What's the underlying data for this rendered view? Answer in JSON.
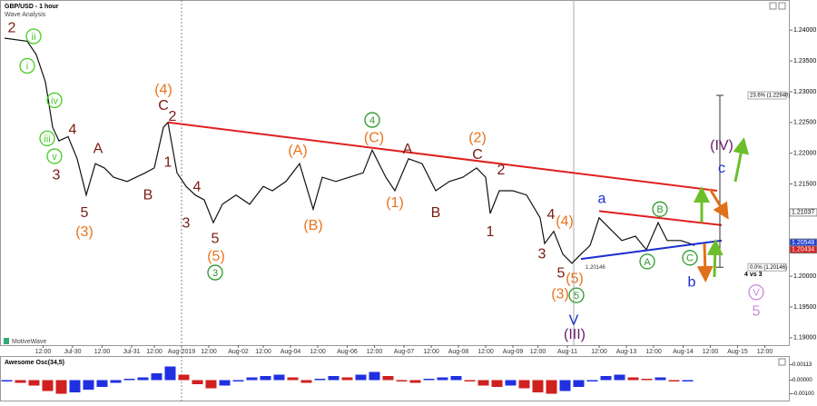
{
  "chart_data": [
    {
      "type": "line",
      "title": "GBP/USD - 1 hour",
      "subtitle": "Wave Analysis",
      "source": "MotiveWave",
      "note": "4 vs 3",
      "color": "#111111",
      "x": [
        2,
        12,
        16,
        20,
        23.2,
        26,
        30,
        34,
        38,
        42,
        46,
        50,
        56,
        60,
        64,
        68,
        72,
        74,
        78,
        82,
        86,
        90,
        94,
        98,
        104,
        110,
        116,
        120,
        126,
        132,
        138,
        142,
        148,
        154,
        160,
        164,
        170,
        174,
        180,
        186,
        192,
        198,
        204,
        210,
        214,
        216,
        220,
        226,
        232,
        238,
        240,
        244,
        248,
        252,
        256,
        260,
        264,
        268,
        274,
        280,
        284.8,
        290,
        294,
        300,
        304,
        306
      ],
      "values": [
        1.2387,
        1.2382,
        1.236,
        1.2316,
        1.2242,
        1.222,
        1.2227,
        1.2191,
        1.2132,
        1.2183,
        1.2176,
        1.2161,
        1.2154,
        1.2161,
        1.2168,
        1.2176,
        1.2242,
        1.225,
        1.2168,
        1.2146,
        1.2132,
        1.2124,
        1.2087,
        1.2117,
        1.2132,
        1.2117,
        1.2146,
        1.2139,
        1.2154,
        1.2183,
        1.2109,
        1.2161,
        1.2154,
        1.2161,
        1.2168,
        1.2205,
        1.2161,
        1.2139,
        1.2191,
        1.2183,
        1.2139,
        1.2154,
        1.2161,
        1.2176,
        1.2161,
        1.2102,
        1.2139,
        1.2139,
        1.2132,
        1.2095,
        1.2053,
        1.2073,
        1.2036,
        1.2021,
        1.2036,
        1.205,
        1.2095,
        1.208,
        1.2058,
        1.2065,
        1.2043,
        1.2087,
        1.2058,
        1.2058,
        1.2053,
        1.205
      ],
      "xlim": [
        0,
        348
      ],
      "ylim": [
        1.1888,
        1.2449
      ],
      "xticks": [
        {
          "value": 19,
          "label": "12:00"
        },
        {
          "value": 32,
          "label": "Jul-30"
        },
        {
          "value": 45,
          "label": "12:00"
        },
        {
          "value": 58,
          "label": "Jul-31"
        },
        {
          "value": 68,
          "label": "12:00"
        },
        {
          "value": 80,
          "label": "Aug-2019"
        },
        {
          "value": 92,
          "label": "12:00"
        },
        {
          "value": 105,
          "label": "Aug-02"
        },
        {
          "value": 116,
          "label": "12:00"
        },
        {
          "value": 128,
          "label": "Aug-04"
        },
        {
          "value": 140,
          "label": "12:00"
        },
        {
          "value": 153,
          "label": "Aug-06"
        },
        {
          "value": 165,
          "label": "12:00"
        },
        {
          "value": 178,
          "label": "Aug-07"
        },
        {
          "value": 190,
          "label": "12:00"
        },
        {
          "value": 202,
          "label": "Aug-08"
        },
        {
          "value": 214,
          "label": "12:00"
        },
        {
          "value": 226,
          "label": "Aug-09"
        },
        {
          "value": 237,
          "label": "12:00"
        },
        {
          "value": 250,
          "label": "Aug-11"
        },
        {
          "value": 264,
          "label": "12:00"
        },
        {
          "value": 276,
          "label": "Aug-13"
        },
        {
          "value": 288,
          "label": "12:00"
        },
        {
          "value": 301,
          "label": "Aug-14"
        },
        {
          "value": 313,
          "label": "12:00"
        },
        {
          "value": 325,
          "label": "Aug-15"
        },
        {
          "value": 337,
          "label": "12:00"
        }
      ],
      "yticks": [
        {
          "value": 1.24,
          "label": "1.24000"
        },
        {
          "value": 1.235,
          "label": "1.23500"
        },
        {
          "value": 1.23,
          "label": "1.23000"
        },
        {
          "value": 1.225,
          "label": "1.22500"
        },
        {
          "value": 1.22,
          "label": "1.22000"
        },
        {
          "value": 1.215,
          "label": "1.21500"
        },
        {
          "value": 1.21,
          "label": "1.21000"
        },
        {
          "value": 1.205,
          "label": "1.20500"
        },
        {
          "value": 1.2,
          "label": "1.20000"
        },
        {
          "value": 1.195,
          "label": "1.19500"
        },
        {
          "value": 1.19,
          "label": "1.19000"
        }
      ],
      "price_tags": [
        {
          "value": 1.21037,
          "label": "1.21037",
          "color": "#ffffff",
          "text_color": "#000000"
        },
        {
          "value": 1.20548,
          "label": "1.20548",
          "color": "#2040d0",
          "text_color": "#ffffff"
        },
        {
          "value": 1.20434,
          "label": "1.20434",
          "color": "#d02020",
          "text_color": "#ffffff"
        }
      ],
      "fib": [
        {
          "value": 1.2294,
          "label": "23.6% (1.22940)"
        },
        {
          "value": 1.20146,
          "label": "0.0% (1.20146)"
        }
      ],
      "low_label": {
        "x": 258,
        "value": 1.20146,
        "label": "1.20146"
      },
      "lines": [
        {
          "x": [
            74,
            316
          ],
          "y": [
            1.225,
            1.2139
          ],
          "color": "#e02020"
        },
        {
          "x": [
            264,
            318
          ],
          "y": [
            1.2106,
            1.2083
          ],
          "color": "#e02020"
        },
        {
          "x": [
            256,
            318
          ],
          "y": [
            1.2028,
            1.2058
          ],
          "color": "#1a2dcc"
        }
      ],
      "annotations": [
        {
          "text": "2",
          "color": "#7a1b12",
          "x": 5.2,
          "y": 1.2404
        },
        {
          "text": "ii",
          "color": "#44cc22",
          "x": 14.8,
          "y": 1.239,
          "circle": true
        },
        {
          "text": "i",
          "color": "#44cc22",
          "x": 12,
          "y": 1.2342,
          "circle": true
        },
        {
          "text": "iv",
          "color": "#44cc22",
          "x": 24,
          "y": 1.2286,
          "circle": true
        },
        {
          "text": "iii",
          "color": "#44cc22",
          "x": 20.8,
          "y": 1.2224,
          "circle": true
        },
        {
          "text": "v",
          "color": "#44cc22",
          "x": 24,
          "y": 1.2195,
          "circle": true
        },
        {
          "text": "3",
          "color": "#7a1b12",
          "x": 24.8,
          "y": 1.2165
        },
        {
          "text": "4",
          "color": "#7a1b12",
          "x": 32,
          "y": 1.2239
        },
        {
          "text": "A",
          "color": "#7a1b12",
          "x": 43.2,
          "y": 1.2208
        },
        {
          "text": "5",
          "color": "#7a1b12",
          "x": 37.2,
          "y": 1.2104
        },
        {
          "text": "(3)",
          "color": "#e8731c",
          "x": 37.2,
          "y": 1.2073
        },
        {
          "text": "B",
          "color": "#7a1b12",
          "x": 65.2,
          "y": 1.2133
        },
        {
          "text": "(4)",
          "color": "#e8731c",
          "x": 72,
          "y": 1.2304
        },
        {
          "text": "C",
          "color": "#7a1b12",
          "x": 72,
          "y": 1.2278
        },
        {
          "text": "2",
          "color": "#7a1b12",
          "x": 76,
          "y": 1.226
        },
        {
          "text": "1",
          "color": "#7a1b12",
          "x": 74,
          "y": 1.2186
        },
        {
          "text": "4",
          "color": "#7a1b12",
          "x": 86.8,
          "y": 1.2146
        },
        {
          "text": "3",
          "color": "#7a1b12",
          "x": 82,
          "y": 1.2087
        },
        {
          "text": "5",
          "color": "#7a1b12",
          "x": 94.8,
          "y": 1.2062
        },
        {
          "text": "(5)",
          "color": "#e8731c",
          "x": 95.2,
          "y": 1.2033
        },
        {
          "text": "3",
          "color": "#2a9a2a",
          "x": 94.8,
          "y": 1.2006,
          "circle": true
        },
        {
          "text": "(A)",
          "color": "#e8731c",
          "x": 131.2,
          "y": 1.2205
        },
        {
          "text": "(B)",
          "color": "#e8731c",
          "x": 138,
          "y": 1.2083
        },
        {
          "text": "4",
          "color": "#2a9a2a",
          "x": 164,
          "y": 1.2254,
          "circle": true
        },
        {
          "text": "(C)",
          "color": "#e8731c",
          "x": 164.8,
          "y": 1.2226
        },
        {
          "text": "(1)",
          "color": "#e8731c",
          "x": 174,
          "y": 1.212
        },
        {
          "text": "A",
          "color": "#7a1b12",
          "x": 179.6,
          "y": 1.2207
        },
        {
          "text": "B",
          "color": "#7a1b12",
          "x": 192,
          "y": 1.2104
        },
        {
          "text": "(2)",
          "color": "#e8731c",
          "x": 210.4,
          "y": 1.2226
        },
        {
          "text": "C",
          "color": "#7a1b12",
          "x": 210.4,
          "y": 1.2198
        },
        {
          "text": "2",
          "color": "#7a1b12",
          "x": 220.8,
          "y": 1.2173
        },
        {
          "text": "1",
          "color": "#7a1b12",
          "x": 216,
          "y": 1.2073
        },
        {
          "text": "4",
          "color": "#7a1b12",
          "x": 242.8,
          "y": 1.2101
        },
        {
          "text": "(4)",
          "color": "#e8731c",
          "x": 248.8,
          "y": 1.209
        },
        {
          "text": "3",
          "color": "#7a1b12",
          "x": 238.8,
          "y": 1.2037
        },
        {
          "text": "5",
          "color": "#7a1b12",
          "x": 247.2,
          "y": 1.2006
        },
        {
          "text": "(5)",
          "color": "#e8731c",
          "x": 253.2,
          "y": 1.1997
        },
        {
          "text": "(3)",
          "color": "#e8731c",
          "x": 246.8,
          "y": 1.1972
        },
        {
          "text": "5",
          "color": "#2a9a2a",
          "x": 254,
          "y": 1.1969,
          "circle": true
        },
        {
          "text": "V",
          "color": "#1a2dcc",
          "x": 252.8,
          "y": 1.1929
        },
        {
          "text": "(III)",
          "color": "#6a1a6a",
          "x": 253.2,
          "y": 1.1906
        },
        {
          "text": "a",
          "color": "#1a2dcc",
          "x": 265.2,
          "y": 1.2127
        },
        {
          "text": "B",
          "color": "#2a9a2a",
          "x": 290.8,
          "y": 1.2109,
          "circle": true
        },
        {
          "text": "A",
          "color": "#2a9a2a",
          "x": 285.2,
          "y": 1.2024,
          "circle": true
        },
        {
          "text": "C",
          "color": "#2a9a2a",
          "x": 304,
          "y": 1.203,
          "circle": true
        },
        {
          "text": "b",
          "color": "#1a2dcc",
          "x": 304.8,
          "y": 1.1991
        },
        {
          "text": "(IV)",
          "color": "#6a1a6a",
          "x": 318,
          "y": 1.2213
        },
        {
          "text": "c",
          "color": "#1a2dcc",
          "x": 318,
          "y": 1.2176
        },
        {
          "text": "V",
          "color": "#cc88dd",
          "x": 333.2,
          "y": 1.1974,
          "circle": true
        },
        {
          "text": "5",
          "color": "#cc88dd",
          "x": 333.2,
          "y": 1.1944
        }
      ]
    },
    {
      "type": "histogram-osc",
      "title": "Awesome Osc(34,5)",
      "up_color": "#2030e0",
      "down_color": "#d02020",
      "x": [
        3,
        9,
        15,
        21,
        27,
        33,
        39,
        45,
        51,
        57,
        63,
        69,
        75,
        81,
        87,
        93,
        99,
        105,
        111,
        117,
        123,
        129,
        135,
        141,
        147,
        153,
        159,
        165,
        171,
        177,
        183,
        189,
        195,
        201,
        207,
        213,
        219,
        225,
        231,
        237,
        243,
        249,
        255,
        261,
        267,
        273,
        279,
        285,
        291,
        297,
        303
      ],
      "values": [
        -0.0001,
        -0.0002,
        -0.0004,
        -0.0008,
        -0.001,
        -0.0009,
        -0.0007,
        -0.0005,
        -0.0002,
        0.0001,
        0.0002,
        0.0005,
        0.001,
        0.0004,
        -0.0003,
        -0.0006,
        -0.0004,
        -0.0001,
        0.0002,
        0.0003,
        0.0004,
        0.0002,
        -0.0002,
        0.0001,
        0.0003,
        0.0002,
        0.0004,
        0.0006,
        0.0003,
        -0.0001,
        -0.0002,
        0.0001,
        0.0002,
        0.0003,
        -0.0001,
        -0.0004,
        -0.0005,
        -0.0004,
        -0.0006,
        -0.0009,
        -0.001,
        -0.0008,
        -0.0005,
        -0.0001,
        0.0003,
        0.0004,
        0.0002,
        0.0001,
        0.0002,
        -0.0001,
        -0.0001
      ],
      "xlim": [
        0,
        348
      ],
      "ylim": [
        -0.0015,
        0.0017
      ],
      "yticks": [
        {
          "value": 0.00113,
          "label": "0.00113"
        },
        {
          "value": 0,
          "label": "0.00000"
        },
        {
          "value": -0.001,
          "label": "-0.00100"
        }
      ]
    }
  ]
}
